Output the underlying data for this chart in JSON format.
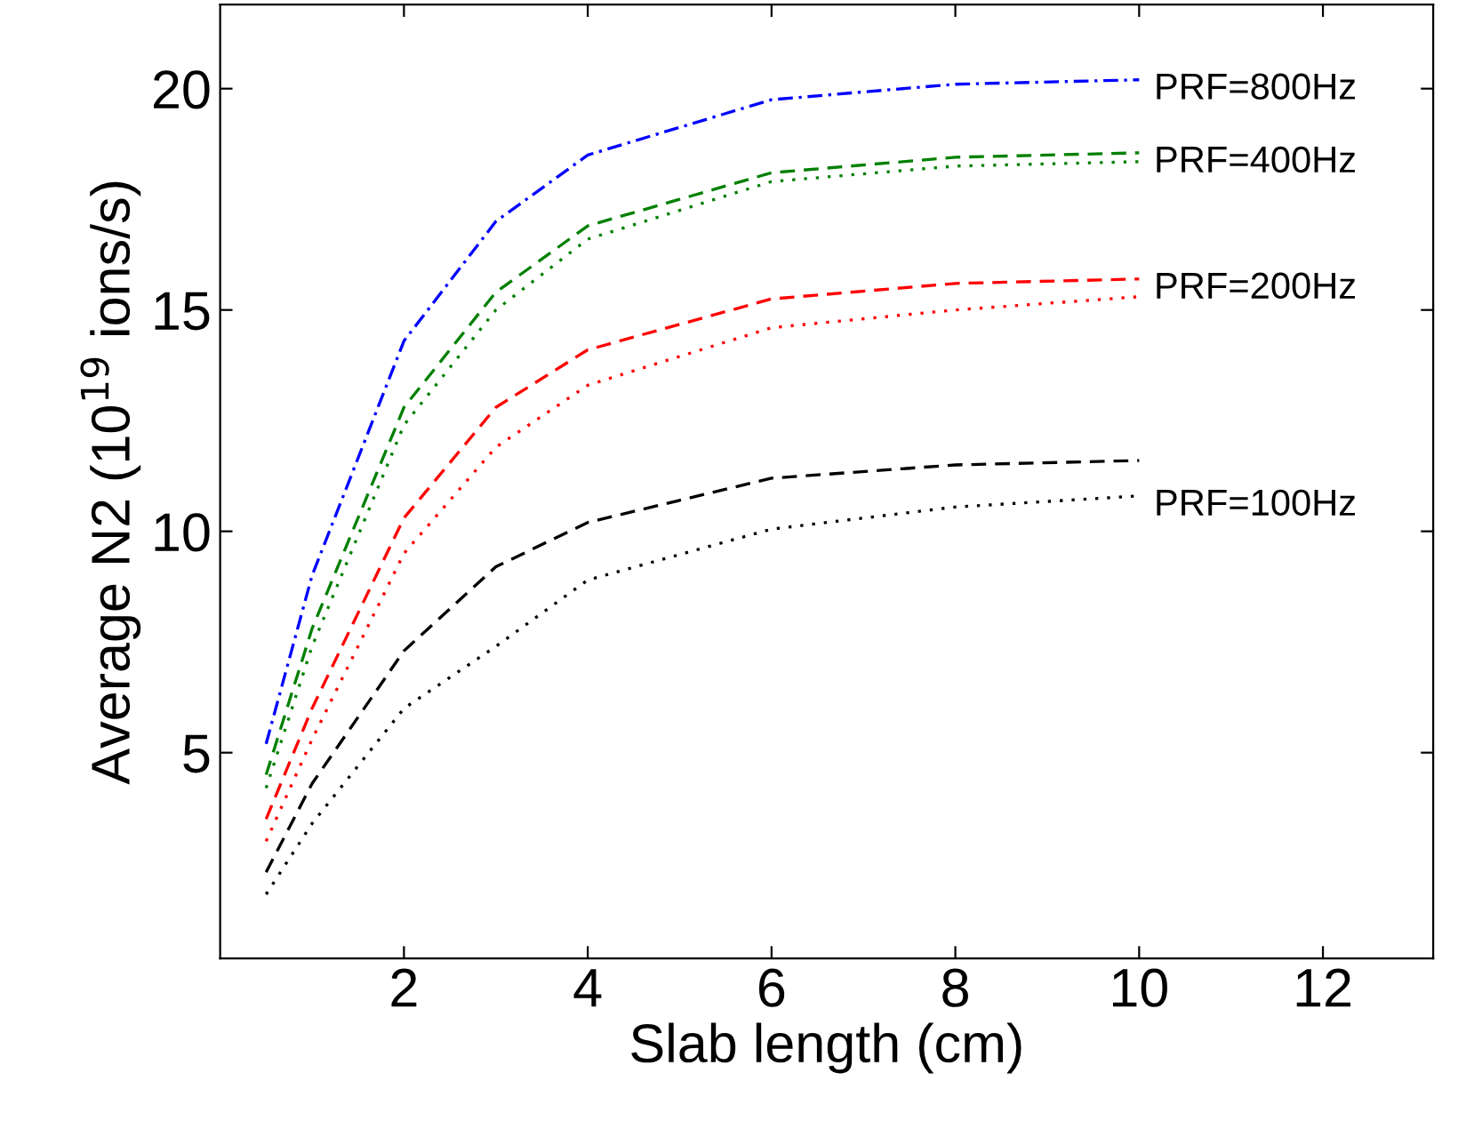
{
  "chart_data": {
    "type": "line",
    "xlabel": "Slab length (cm)",
    "ylabel": "Average N2 (10$^{19}$ ions/s)",
    "x": [
      0.5,
      1,
      2,
      3,
      4,
      6,
      8,
      10
    ],
    "series": [
      {
        "color": "#0000ff",
        "line_style": "dashdot",
        "values": [
          5.2,
          9.0,
          14.3,
          17.0,
          18.5,
          19.75,
          20.1,
          20.2
        ]
      },
      {
        "color": "#008000",
        "line_style": "dashed",
        "values": [
          4.5,
          7.8,
          12.8,
          15.4,
          16.9,
          18.1,
          18.45,
          18.55
        ]
      },
      {
        "color": "#008000",
        "line_style": "dotted",
        "values": [
          4.2,
          7.4,
          12.4,
          15.0,
          16.6,
          17.9,
          18.25,
          18.35
        ]
      },
      {
        "color": "#ff0000",
        "line_style": "dashed",
        "values": [
          3.5,
          6.0,
          10.3,
          12.8,
          14.1,
          15.25,
          15.6,
          15.7
        ]
      },
      {
        "color": "#ff0000",
        "line_style": "dotted",
        "values": [
          3.0,
          5.3,
          9.5,
          11.9,
          13.3,
          14.6,
          15.0,
          15.3
        ]
      },
      {
        "color": "#000000",
        "line_style": "dashed",
        "values": [
          2.3,
          4.3,
          7.3,
          9.2,
          10.2,
          11.2,
          11.5,
          11.6
        ]
      },
      {
        "color": "#000000",
        "line_style": "dotted",
        "values": [
          1.8,
          3.4,
          6.0,
          7.4,
          8.9,
          10.05,
          10.55,
          10.8
        ]
      }
    ],
    "annotations": [
      "PRF=800Hz",
      "PRF=400Hz",
      "PRF=200Hz",
      "PRF=100Hz"
    ],
    "xlim": [
      0,
      13.2
    ],
    "xticks": [
      2,
      4,
      6,
      8,
      10,
      12
    ],
    "ylim": [
      0.35,
      21.9
    ],
    "yticks": [
      5,
      10,
      15,
      20
    ],
    "grid": false,
    "legend": false
  }
}
